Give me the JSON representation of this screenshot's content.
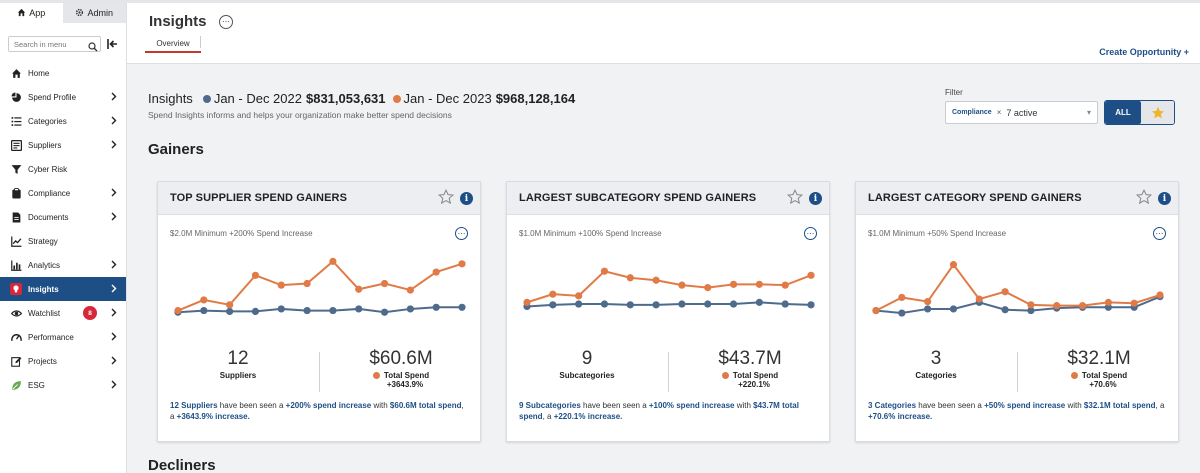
{
  "colors": {
    "brand": "#1d4f86",
    "series_2022": "#4e6b8c",
    "series_2023": "#e07b47",
    "badge": "#d6283a",
    "star": "#f0b429"
  },
  "sidebar": {
    "tabs": [
      {
        "label": "App",
        "icon": "home-icon"
      },
      {
        "label": "Admin",
        "icon": "gear-icon"
      }
    ],
    "search_placeholder": "Search in menu",
    "items": [
      {
        "label": "Home",
        "icon": "home-icon",
        "chevron": false
      },
      {
        "label": "Spend Profile",
        "icon": "pie-chart-icon",
        "chevron": true
      },
      {
        "label": "Categories",
        "icon": "list-icon",
        "chevron": true
      },
      {
        "label": "Suppliers",
        "icon": "suppliers-icon",
        "chevron": true
      },
      {
        "label": "Cyber Risk",
        "icon": "filter-icon",
        "chevron": false
      },
      {
        "label": "Compliance",
        "icon": "clipboard-icon",
        "chevron": true
      },
      {
        "label": "Documents",
        "icon": "document-icon",
        "chevron": true
      },
      {
        "label": "Strategy",
        "icon": "line-chart-icon",
        "chevron": false
      },
      {
        "label": "Analytics",
        "icon": "bar-chart-icon",
        "chevron": true
      },
      {
        "label": "Insights",
        "icon": "lightbulb-icon",
        "chevron": true,
        "active": true
      },
      {
        "label": "Watchlist",
        "icon": "eye-icon",
        "chevron": true,
        "badge": "8"
      },
      {
        "label": "Performance",
        "icon": "speedometer-icon",
        "chevron": true
      },
      {
        "label": "Projects",
        "icon": "edit-icon",
        "chevron": true
      },
      {
        "label": "ESG",
        "icon": "leaf-icon",
        "chevron": true
      }
    ]
  },
  "header": {
    "title": "Insights",
    "tab": "Overview",
    "create_link": "Create Opportunity +"
  },
  "summary": {
    "label": "Insights",
    "period_1": "Jan - Dec 2022",
    "amount_1": "$831,053,631",
    "period_2": "Jan - Dec 2023",
    "amount_2": "$968,128,164",
    "subtitle": "Spend Insights informs and helps your organization make better spend decisions"
  },
  "filter": {
    "label": "Filter",
    "chip": "Compliance",
    "value": "7 active",
    "all_label": "ALL"
  },
  "sections": {
    "gainers": "Gainers",
    "decliners": "Decliners"
  },
  "cards": [
    {
      "title": "TOP SUPPLIER SPEND GAINERS",
      "criteria": "$2.0M Minimum  +200% Spend Increase",
      "count": "12",
      "count_label": "Suppliers",
      "total": "$60.6M",
      "total_label": "Total Spend",
      "pct": "+3643.9%",
      "desc_1": "12 Suppliers",
      "desc_2": " have been seen a ",
      "desc_3": "+200% spend increase",
      "desc_4": " with ",
      "desc_5": "$60.6M total spend",
      "desc_6": ", a ",
      "desc_7": "+3643.9% increase.",
      "chart_2022": [
        29,
        31,
        30,
        30,
        33,
        31,
        31,
        33,
        29,
        33,
        35,
        35
      ],
      "chart_2023": [
        31,
        44,
        38,
        74,
        62,
        64,
        91,
        57,
        64,
        56,
        78,
        88
      ]
    },
    {
      "title": "LARGEST SUBCATEGORY SPEND GAINERS",
      "criteria": "$1.0M Minimum  +100% Spend Increase",
      "count": "9",
      "count_label": "Subcategories",
      "total": "$43.7M",
      "total_label": "Total Spend",
      "pct": "+220.1%",
      "desc_1": "9 Subcategories",
      "desc_2": " have been seen a ",
      "desc_3": "+100% spend increase",
      "desc_4": " with ",
      "desc_5": "$43.7M total spend",
      "desc_6": ", a ",
      "desc_7": "+220.1% increase.",
      "chart_2022": [
        36,
        38,
        39,
        39,
        38,
        38,
        39,
        39,
        39,
        41,
        39,
        38
      ],
      "chart_2023": [
        41,
        51,
        49,
        79,
        71,
        68,
        62,
        59,
        63,
        63,
        62,
        74
      ]
    },
    {
      "title": "LARGEST CATEGORY SPEND GAINERS",
      "criteria": "$1.0M Minimum  +50% Spend Increase",
      "count": "3",
      "count_label": "Categories",
      "total": "$32.1M",
      "total_label": "Total Spend",
      "pct": "+70.6%",
      "desc_1": "3 Categories",
      "desc_2": " have been seen a ",
      "desc_3": "+50% spend increase",
      "desc_4": " with ",
      "desc_5": "$32.1M total spend",
      "desc_6": ", a ",
      "desc_7": "+70.6% increase.",
      "chart_2022": [
        31,
        28,
        33,
        33,
        41,
        32,
        31,
        34,
        35,
        35,
        35,
        48
      ],
      "chart_2023": [
        31,
        47,
        42,
        87,
        45,
        54,
        38,
        37,
        37,
        41,
        40,
        50
      ]
    }
  ]
}
